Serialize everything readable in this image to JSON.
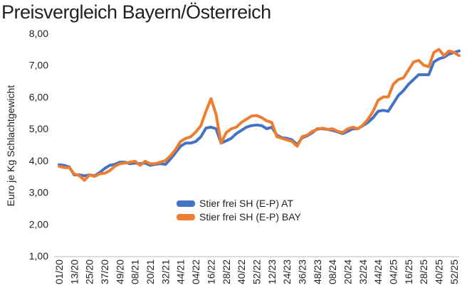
{
  "chart_data": {
    "type": "line",
    "title": "Preisvergleich Bayern/Österreich",
    "y_label": "Euro je Kg Schlachtgewicht",
    "categories": [
      "01/20",
      null,
      null,
      "13/20",
      null,
      null,
      "25/20",
      null,
      null,
      "37/20",
      null,
      null,
      "49/20",
      null,
      null,
      "08/21",
      null,
      null,
      "20/21",
      null,
      null,
      "32/21",
      null,
      null,
      "44/21",
      null,
      null,
      "04/22",
      null,
      null,
      "16/22",
      null,
      null,
      "28/22",
      null,
      null,
      "40/22",
      null,
      null,
      "52/22",
      null,
      null,
      "12/23",
      null,
      null,
      "24/23",
      null,
      null,
      "36/23",
      null,
      null,
      "48/23",
      null,
      null,
      "08/24",
      null,
      null,
      "20/24",
      null,
      null,
      "32/24",
      null,
      null,
      "44/24",
      null,
      null,
      "04/25",
      null,
      null,
      "16/25",
      null,
      null,
      "28/25",
      null,
      null,
      "40/25",
      null,
      null,
      "52/25",
      null
    ],
    "series": [
      {
        "name": "Stier frei SH (E-P) AT",
        "color": "#4472c4",
        "values": [
          3.87,
          3.85,
          3.8,
          3.55,
          3.55,
          3.52,
          3.55,
          3.52,
          3.62,
          3.75,
          3.85,
          3.88,
          3.95,
          3.95,
          3.9,
          3.92,
          3.9,
          3.92,
          3.85,
          3.88,
          3.9,
          3.88,
          4.05,
          4.25,
          4.45,
          4.55,
          4.55,
          4.6,
          4.75,
          5.02,
          5.05,
          5.0,
          4.55,
          4.62,
          4.7,
          4.85,
          4.95,
          5.05,
          5.1,
          5.12,
          5.1,
          5.0,
          5.05,
          4.8,
          4.72,
          4.7,
          4.65,
          4.5,
          4.72,
          4.78,
          4.88,
          5.0,
          5.0,
          4.98,
          4.95,
          4.9,
          4.85,
          4.92,
          5.0,
          5.0,
          5.1,
          5.2,
          5.35,
          5.55,
          5.58,
          5.55,
          5.8,
          6.05,
          6.2,
          6.4,
          6.55,
          6.7,
          6.7,
          6.7,
          7.1,
          7.2,
          7.25,
          7.35,
          7.4,
          7.45
        ]
      },
      {
        "name": "Stier frei SH (E-P) BAY",
        "color": "#ed7d31",
        "values": [
          3.82,
          3.78,
          3.78,
          3.58,
          3.52,
          3.38,
          3.55,
          3.5,
          3.58,
          3.6,
          3.68,
          3.82,
          3.9,
          3.92,
          3.95,
          3.98,
          3.85,
          3.98,
          3.9,
          3.9,
          3.95,
          4.0,
          4.15,
          4.35,
          4.6,
          4.7,
          4.75,
          4.9,
          5.1,
          5.55,
          5.95,
          5.45,
          4.55,
          4.88,
          5.0,
          5.05,
          5.2,
          5.3,
          5.4,
          5.42,
          5.35,
          5.25,
          5.2,
          4.75,
          4.7,
          4.65,
          4.6,
          4.45,
          4.75,
          4.8,
          4.92,
          4.98,
          5.02,
          4.98,
          5.0,
          4.92,
          4.88,
          5.0,
          5.05,
          5.0,
          5.12,
          5.3,
          5.55,
          5.9,
          6.0,
          6.0,
          6.4,
          6.55,
          6.6,
          6.85,
          7.1,
          7.15,
          7.0,
          6.95,
          7.4,
          7.5,
          7.3,
          7.45,
          7.4,
          7.3
        ]
      }
    ],
    "ylim": [
      1,
      8
    ],
    "yticks": [
      {
        "value": 1,
        "label": "1,00"
      },
      {
        "value": 2,
        "label": "2,00"
      },
      {
        "value": 3,
        "label": "3,00"
      },
      {
        "value": 4,
        "label": "4,00"
      },
      {
        "value": 5,
        "label": "5,00"
      },
      {
        "value": 6,
        "label": "6,00"
      },
      {
        "value": 7,
        "label": "7,00"
      },
      {
        "value": 8,
        "label": "8,00"
      }
    ],
    "grid": false
  }
}
